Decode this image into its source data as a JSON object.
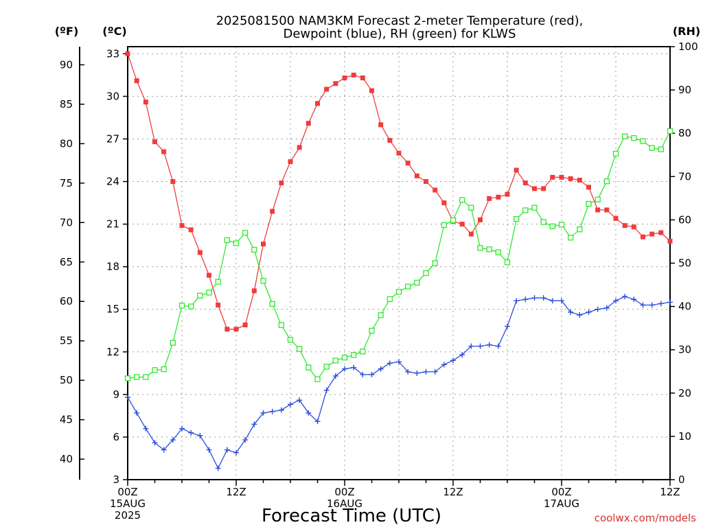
{
  "chart_data": {
    "type": "line",
    "title_line1": "2025081500 NAM3KM Forecast 2-meter Temperature (red),",
    "title_line2": "Dewpoint (blue), RH (green) for KLWS",
    "unit_f": "(ºF)",
    "unit_c": "(ºC)",
    "unit_rh": "(RH)",
    "xlabel": "Forecast Time (UTC)",
    "watermark": "coolwx.com/models",
    "x_ticks": [
      {
        "h": 0,
        "line1": "00Z",
        "line2": "15AUG",
        "line3": "2025"
      },
      {
        "h": 12,
        "line1": "12Z",
        "line2": "",
        "line3": ""
      },
      {
        "h": 24,
        "line1": "00Z",
        "line2": "16AUG",
        "line3": ""
      },
      {
        "h": 36,
        "line1": "12Z",
        "line2": "",
        "line3": ""
      },
      {
        "h": 48,
        "line1": "00Z",
        "line2": "17AUG",
        "line3": ""
      },
      {
        "h": 60,
        "line1": "12Z",
        "line2": "",
        "line3": ""
      }
    ],
    "xlim": [
      0,
      60
    ],
    "celsius_axis": {
      "ylim": [
        3,
        33.5
      ],
      "ticks": [
        "3",
        "6",
        "9",
        "12",
        "15",
        "18",
        "21",
        "24",
        "27",
        "30",
        "33"
      ]
    },
    "fahrenheit_axis": {
      "ticks": [
        "40",
        "45",
        "50",
        "55",
        "60",
        "65",
        "70",
        "75",
        "80",
        "85",
        "90"
      ]
    },
    "rh_axis": {
      "ylim": [
        0,
        100
      ],
      "ticks": [
        "0",
        "10",
        "20",
        "30",
        "40",
        "50",
        "60",
        "70",
        "80",
        "90",
        "100"
      ]
    },
    "grid": true,
    "x_hours": [
      0,
      1,
      2,
      3,
      4,
      5,
      6,
      7,
      8,
      9,
      10,
      11,
      12,
      13,
      14,
      15,
      16,
      17,
      18,
      19,
      20,
      21,
      22,
      23,
      24,
      25,
      26,
      27,
      28,
      29,
      30,
      31,
      32,
      33,
      34,
      35,
      36,
      37,
      38,
      39,
      40,
      41,
      42,
      43,
      44,
      45,
      46,
      47,
      48,
      49,
      50,
      51,
      52,
      53,
      54,
      55,
      56,
      57,
      58,
      59,
      60
    ],
    "series": [
      {
        "name": "Temperature",
        "axis": "celsius",
        "color": "#f03c3c",
        "marker": "filled-square",
        "values": [
          33.0,
          31.1,
          29.6,
          26.8,
          26.1,
          24.0,
          20.9,
          20.6,
          19.0,
          17.4,
          15.3,
          13.6,
          13.6,
          13.9,
          16.3,
          19.6,
          21.9,
          23.9,
          25.4,
          26.4,
          28.1,
          29.5,
          30.5,
          30.9,
          31.3,
          31.5,
          31.3,
          30.4,
          28.0,
          26.9,
          26.0,
          25.3,
          24.4,
          24.0,
          23.4,
          22.5,
          21.2,
          21.0,
          20.3,
          21.3,
          22.8,
          22.9,
          23.1,
          24.8,
          23.9,
          23.5,
          23.5,
          24.3,
          24.3,
          24.2,
          24.1,
          23.6,
          22.0,
          22.0,
          21.4,
          20.9,
          20.8,
          20.1,
          20.3,
          20.4,
          19.8
        ]
      },
      {
        "name": "Dewpoint",
        "axis": "celsius",
        "color": "#2b4ddb",
        "marker": "plus",
        "values": [
          8.8,
          7.7,
          6.6,
          5.6,
          5.1,
          5.8,
          6.6,
          6.3,
          6.1,
          5.1,
          3.8,
          5.1,
          4.9,
          5.8,
          6.9,
          7.7,
          7.8,
          7.9,
          8.3,
          8.6,
          7.7,
          7.1,
          9.3,
          10.3,
          10.8,
          10.9,
          10.4,
          10.4,
          10.8,
          11.2,
          11.3,
          10.6,
          10.5,
          10.6,
          10.6,
          11.1,
          11.4,
          11.8,
          12.4,
          12.4,
          12.5,
          12.4,
          13.8,
          15.6,
          15.7,
          15.8,
          15.8,
          15.6,
          15.6,
          14.8,
          14.6,
          14.8,
          15.0,
          15.1,
          15.6,
          15.9,
          15.7,
          15.3,
          15.3,
          15.4,
          15.5
        ]
      },
      {
        "name": "RH",
        "axis": "rh",
        "color": "#2ee82e",
        "marker": "open-square",
        "values": [
          23.4,
          23.7,
          23.7,
          25.3,
          25.5,
          31.6,
          40.2,
          40.0,
          42.5,
          43.2,
          45.7,
          55.3,
          54.6,
          57.0,
          53.1,
          45.9,
          40.6,
          35.7,
          32.3,
          30.2,
          25.9,
          23.2,
          26.1,
          27.5,
          28.2,
          28.8,
          29.6,
          34.4,
          38.0,
          41.7,
          43.4,
          44.6,
          45.5,
          47.7,
          50.0,
          58.8,
          59.9,
          64.6,
          62.8,
          53.5,
          53.2,
          52.5,
          50.2,
          60.2,
          62.2,
          62.8,
          59.5,
          58.5,
          58.9,
          55.9,
          57.8,
          63.7,
          64.7,
          68.9,
          75.3,
          79.3,
          78.9,
          78.2,
          76.6,
          76.3,
          80.5
        ]
      }
    ]
  }
}
